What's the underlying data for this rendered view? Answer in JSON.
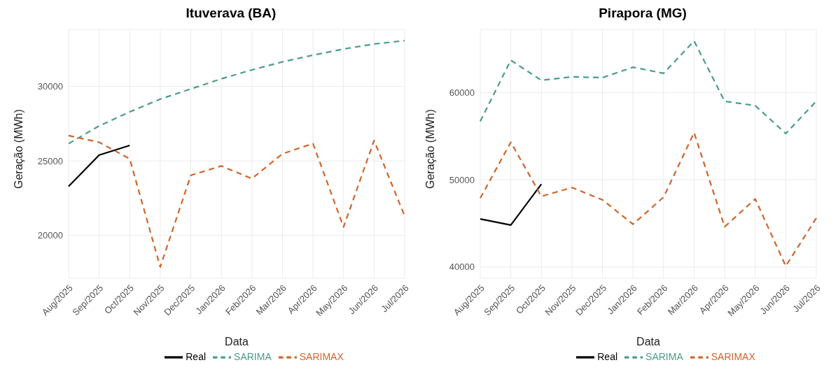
{
  "chart_data": [
    {
      "type": "line",
      "title": "Ituverava (BA)",
      "xlabel": "Data",
      "ylabel": "Geração (MWh)",
      "categories": [
        "Aug/2025",
        "Sep/2025",
        "Oct/2025",
        "Nov/2025",
        "Dec/2025",
        "Jan/2026",
        "Feb/2026",
        "Mar/2026",
        "Apr/2026",
        "May/2026",
        "Jun/2026",
        "Jul/2026"
      ],
      "series": [
        {
          "name": "Real",
          "color": "#000000",
          "line_style": "solid",
          "values": [
            23290,
            25390,
            26040,
            null,
            null,
            null,
            null,
            null,
            null,
            null,
            null,
            null
          ]
        },
        {
          "name": "SARIMA",
          "color": "#4a9e82",
          "line_style": "dashed",
          "values": [
            26160,
            27350,
            28290,
            29150,
            29830,
            30510,
            31110,
            31650,
            32100,
            32510,
            32850,
            33070
          ]
        },
        {
          "name": "SARIMAX",
          "color": "#d0652c",
          "line_style": "dashed",
          "values": [
            26700,
            26250,
            25140,
            17880,
            24030,
            24660,
            23810,
            25480,
            26160,
            20560,
            26370,
            21300
          ]
        }
      ],
      "ylim": [
        17120,
        33830
      ],
      "yticks": [
        20000,
        25000,
        30000
      ],
      "grid": true,
      "legend": "bottom",
      "marker": "none"
    },
    {
      "type": "line",
      "title": "Pirapora (MG)",
      "xlabel": "Data",
      "ylabel": "Geração (MWh)",
      "categories": [
        "Aug/2025",
        "Sep/2025",
        "Oct/2025",
        "Nov/2025",
        "Dec/2025",
        "Jan/2026",
        "Feb/2026",
        "Mar/2026",
        "Apr/2026",
        "May/2026",
        "Jun/2026",
        "Jul/2026"
      ],
      "series": [
        {
          "name": "Real",
          "color": "#000000",
          "line_style": "solid",
          "values": [
            45500,
            44800,
            49500,
            null,
            null,
            null,
            null,
            null,
            null,
            null,
            null,
            null
          ]
        },
        {
          "name": "SARIMA",
          "color": "#4a9e82",
          "line_style": "dashed",
          "values": [
            56700,
            63700,
            61400,
            61800,
            61700,
            62900,
            62200,
            65900,
            59000,
            58500,
            55300,
            59000
          ]
        },
        {
          "name": "SARIMAX",
          "color": "#d0652c",
          "line_style": "dashed",
          "values": [
            47900,
            54300,
            48100,
            49100,
            47700,
            44900,
            48000,
            55400,
            44600,
            47800,
            40100,
            45600
          ]
        }
      ],
      "ylim": [
        38700,
        67240
      ],
      "yticks": [
        40000,
        50000,
        60000
      ],
      "grid": true,
      "legend": "bottom",
      "marker": "none"
    }
  ]
}
